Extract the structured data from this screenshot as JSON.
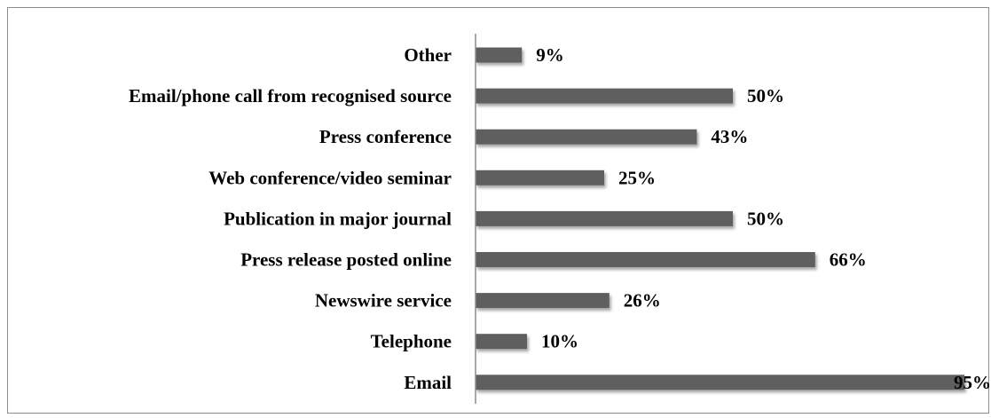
{
  "chart_data": {
    "type": "bar",
    "orientation": "horizontal",
    "categories": [
      "Other",
      "Email/phone call from recognised source",
      "Press conference",
      "Web conference/video seminar",
      "Publication in major journal",
      "Press release posted online",
      "Newswire service",
      "Telephone",
      "Email"
    ],
    "values": [
      9,
      50,
      43,
      25,
      50,
      66,
      26,
      10,
      95
    ],
    "value_labels": [
      "9%",
      "50%",
      "43%",
      "25%",
      "50%",
      "66%",
      "26%",
      "10%",
      "95%"
    ],
    "xlim": [
      0,
      100
    ],
    "grid": false,
    "legend": "none",
    "bar_color": "#5f5f5f"
  }
}
